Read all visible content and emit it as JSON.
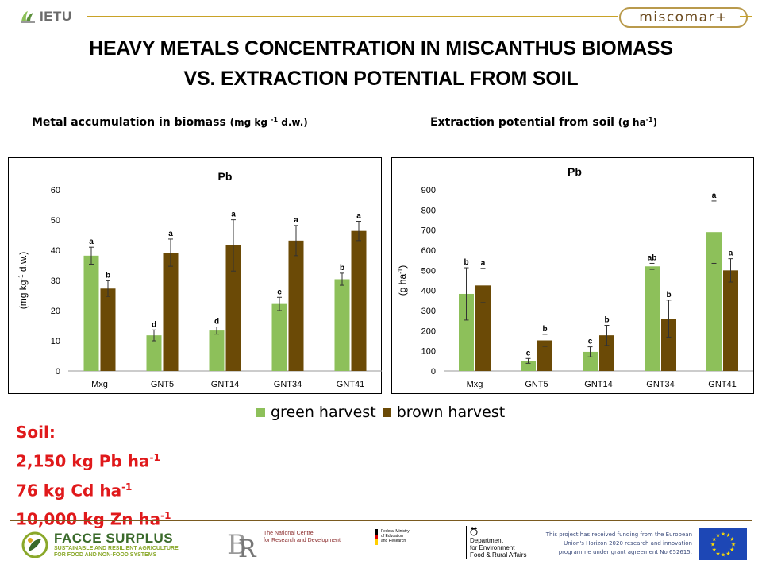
{
  "header": {
    "left_logo_text": "IETU",
    "right_logo_text": "miscomar+"
  },
  "title": {
    "line1": "HEAVY METALS CONCENTRATION IN MISCANTHUS BIOMASS",
    "line2": "VS. EXTRACTION POTENTIAL FROM SOIL"
  },
  "subtitles": {
    "left_main": "Metal accumulation  in biomass",
    "left_unit_a": "(mg kg ",
    "left_unit_sup": "-1",
    "left_unit_b": " d.w.)",
    "right_main": "Extraction  potential from soil",
    "right_unit_a": "(g ha",
    "right_unit_sup": "-1",
    "right_unit_b": ")"
  },
  "chart_data": [
    {
      "type": "bar",
      "title": "Pb",
      "ylabel_a": "(mg kg",
      "ylabel_sup": "-1",
      "ylabel_b": " d.w.)",
      "xlabel": "",
      "categories": [
        "Mxg",
        "GNT5",
        "GNT14",
        "GNT34",
        "GNT41"
      ],
      "ylim": [
        0,
        60
      ],
      "yticks": [
        0,
        10,
        20,
        30,
        40,
        50,
        60
      ],
      "series": [
        {
          "name": "green harvest",
          "color": "#8dc05a",
          "values": [
            38.2,
            11.8,
            13.4,
            22.2,
            30.4
          ],
          "errors": [
            2.8,
            1.8,
            1.2,
            2.2,
            2.0
          ],
          "letters": [
            "a",
            "d",
            "d",
            "c",
            "b"
          ]
        },
        {
          "name": "brown harvest",
          "color": "#6b4a06",
          "values": [
            27.3,
            39.2,
            41.6,
            43.2,
            46.4
          ],
          "errors": [
            2.6,
            4.5,
            8.5,
            5.0,
            3.2
          ],
          "letters": [
            "b",
            "a",
            "a",
            "a",
            "a"
          ]
        }
      ],
      "grid": false
    },
    {
      "type": "bar",
      "title": "Pb",
      "ylabel_a": "(g ha",
      "ylabel_sup": "-1",
      "ylabel_b": ")",
      "xlabel": "",
      "categories": [
        "Mxg",
        "GNT5",
        "GNT14",
        "GNT34",
        "GNT41"
      ],
      "ylim": [
        0,
        900
      ],
      "yticks": [
        0,
        100,
        200,
        300,
        400,
        500,
        600,
        700,
        800,
        900
      ],
      "series": [
        {
          "name": "green harvest",
          "color": "#8dc05a",
          "values": [
            383,
            50,
            95,
            520,
            690
          ],
          "errors": [
            130,
            12,
            25,
            15,
            155
          ],
          "letters": [
            "b",
            "c",
            "c",
            "ab",
            "a"
          ]
        },
        {
          "name": "brown harvest",
          "color": "#6b4a06",
          "values": [
            425,
            152,
            177,
            260,
            500
          ],
          "errors": [
            85,
            30,
            50,
            92,
            58
          ],
          "letters": [
            "a",
            "b",
            "b",
            "b",
            "a"
          ]
        }
      ],
      "grid": false
    }
  ],
  "legend": {
    "green_label": "green harvest",
    "green_color": "#8dc05a",
    "brown_label": "brown harvest",
    "brown_color": "#6b4a06"
  },
  "soil": {
    "heading": "Soil:",
    "line1_a": "2,150 kg Pb ha",
    "line2_a": "76 kg Cd ha",
    "line3_a": "10,000 kg Zn ha",
    "sup": "-1"
  },
  "footer": {
    "facce_title": "FACCE SURPLUS",
    "facce_sub1": "SUSTAINABLE AND RESILIENT AGRICULTURE",
    "facce_sub2": "FOR FOOD AND NON-FOOD SYSTEMS",
    "ncbr_line1": "The National Centre",
    "ncbr_line2": "for Research and Development",
    "bmbf_line1": "Federal Ministry",
    "bmbf_line2": "of Education",
    "bmbf_line3": "and Research",
    "defra_line1": "Department",
    "defra_line2": "for Environment",
    "defra_line3": "Food & Rural Affairs",
    "funding_line1": "This project  has received  funding from the European",
    "funding_line2": "Union's Horizon 2020 research and innovation",
    "funding_line3": "programme  under grant agreement   No 652615."
  }
}
